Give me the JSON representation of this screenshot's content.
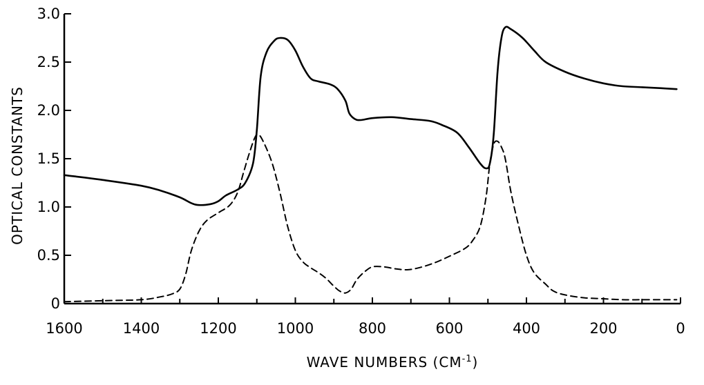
{
  "chart_data": {
    "type": "line",
    "title": "",
    "xlabel": "WAVE NUMBERS (CM",
    "xlabel_superscript": "-1",
    "xlabel_suffix": ")",
    "ylabel": "OPTICAL CONSTANTS",
    "xlim": [
      1600,
      0
    ],
    "ylim": [
      0,
      3.0
    ],
    "x_reversed": true,
    "grid": false,
    "legend": "none",
    "x_ticks": [
      1600,
      1400,
      1200,
      1000,
      800,
      600,
      400,
      200,
      0
    ],
    "x_tick_labels": [
      "1600",
      "1400",
      "1200",
      "1000",
      "800",
      "600",
      "400",
      "200",
      "0"
    ],
    "y_ticks": [
      0,
      0.5,
      1.0,
      1.5,
      2.0,
      2.5,
      3.0
    ],
    "y_tick_labels": [
      "0",
      "0.5",
      "1.0",
      "1.5",
      "2.0",
      "2.5",
      "3.0"
    ],
    "series": [
      {
        "style": "solid",
        "color": "#000000",
        "points": [
          [
            1600,
            1.33
          ],
          [
            1500,
            1.28
          ],
          [
            1400,
            1.22
          ],
          [
            1350,
            1.17
          ],
          [
            1300,
            1.1
          ],
          [
            1270,
            1.04
          ],
          [
            1250,
            1.02
          ],
          [
            1220,
            1.03
          ],
          [
            1200,
            1.06
          ],
          [
            1180,
            1.12
          ],
          [
            1150,
            1.18
          ],
          [
            1130,
            1.25
          ],
          [
            1110,
            1.45
          ],
          [
            1100,
            1.8
          ],
          [
            1090,
            2.35
          ],
          [
            1075,
            2.6
          ],
          [
            1055,
            2.72
          ],
          [
            1040,
            2.75
          ],
          [
            1020,
            2.73
          ],
          [
            1000,
            2.62
          ],
          [
            980,
            2.45
          ],
          [
            960,
            2.33
          ],
          [
            940,
            2.3
          ],
          [
            910,
            2.27
          ],
          [
            890,
            2.22
          ],
          [
            870,
            2.1
          ],
          [
            860,
            1.97
          ],
          [
            845,
            1.91
          ],
          [
            830,
            1.9
          ],
          [
            800,
            1.92
          ],
          [
            750,
            1.93
          ],
          [
            700,
            1.91
          ],
          [
            650,
            1.89
          ],
          [
            620,
            1.85
          ],
          [
            580,
            1.77
          ],
          [
            550,
            1.62
          ],
          [
            520,
            1.45
          ],
          [
            505,
            1.4
          ],
          [
            495,
            1.45
          ],
          [
            485,
            1.75
          ],
          [
            475,
            2.4
          ],
          [
            465,
            2.75
          ],
          [
            455,
            2.86
          ],
          [
            440,
            2.84
          ],
          [
            410,
            2.75
          ],
          [
            380,
            2.62
          ],
          [
            350,
            2.5
          ],
          [
            300,
            2.4
          ],
          [
            250,
            2.33
          ],
          [
            200,
            2.28
          ],
          [
            150,
            2.25
          ],
          [
            100,
            2.24
          ],
          [
            50,
            2.23
          ],
          [
            10,
            2.22
          ]
        ]
      },
      {
        "style": "dashed",
        "color": "#000000",
        "points": [
          [
            1600,
            0.02
          ],
          [
            1500,
            0.03
          ],
          [
            1400,
            0.04
          ],
          [
            1350,
            0.07
          ],
          [
            1320,
            0.1
          ],
          [
            1300,
            0.15
          ],
          [
            1285,
            0.3
          ],
          [
            1270,
            0.55
          ],
          [
            1250,
            0.75
          ],
          [
            1230,
            0.86
          ],
          [
            1200,
            0.94
          ],
          [
            1170,
            1.02
          ],
          [
            1150,
            1.15
          ],
          [
            1135,
            1.35
          ],
          [
            1120,
            1.55
          ],
          [
            1105,
            1.72
          ],
          [
            1095,
            1.75
          ],
          [
            1080,
            1.65
          ],
          [
            1060,
            1.45
          ],
          [
            1040,
            1.15
          ],
          [
            1020,
            0.8
          ],
          [
            1000,
            0.55
          ],
          [
            980,
            0.43
          ],
          [
            960,
            0.37
          ],
          [
            940,
            0.32
          ],
          [
            920,
            0.26
          ],
          [
            900,
            0.18
          ],
          [
            885,
            0.13
          ],
          [
            870,
            0.11
          ],
          [
            855,
            0.15
          ],
          [
            840,
            0.25
          ],
          [
            820,
            0.33
          ],
          [
            800,
            0.38
          ],
          [
            770,
            0.38
          ],
          [
            740,
            0.36
          ],
          [
            710,
            0.35
          ],
          [
            680,
            0.37
          ],
          [
            640,
            0.42
          ],
          [
            600,
            0.49
          ],
          [
            560,
            0.57
          ],
          [
            540,
            0.65
          ],
          [
            520,
            0.8
          ],
          [
            505,
            1.1
          ],
          [
            495,
            1.45
          ],
          [
            485,
            1.65
          ],
          [
            475,
            1.68
          ],
          [
            465,
            1.62
          ],
          [
            455,
            1.5
          ],
          [
            440,
            1.15
          ],
          [
            420,
            0.8
          ],
          [
            400,
            0.5
          ],
          [
            380,
            0.32
          ],
          [
            350,
            0.2
          ],
          [
            330,
            0.13
          ],
          [
            300,
            0.09
          ],
          [
            250,
            0.06
          ],
          [
            200,
            0.05
          ],
          [
            150,
            0.04
          ],
          [
            100,
            0.04
          ],
          [
            50,
            0.04
          ],
          [
            10,
            0.04
          ]
        ]
      }
    ]
  }
}
